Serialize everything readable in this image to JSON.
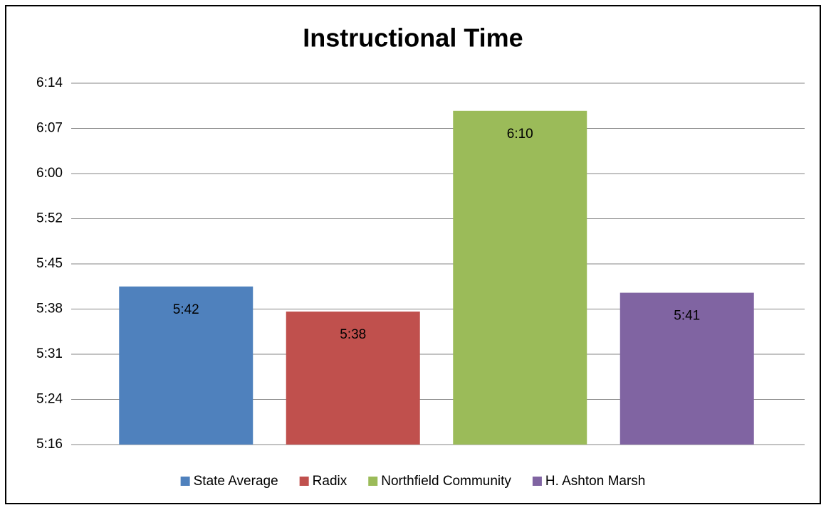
{
  "chart_data": {
    "type": "bar",
    "title": "Instructional Time",
    "categories": [
      "State Average",
      "Radix",
      "Northfield Community",
      "H. Ashton Marsh"
    ],
    "values": [
      342,
      338,
      370,
      341
    ],
    "value_labels": [
      "5:42",
      "5:38",
      "6:10",
      "5:41"
    ],
    "colors": [
      "#4f81bd",
      "#c0504d",
      "#9bbb59",
      "#8064a2"
    ],
    "ylim": [
      316.8,
      374.4
    ],
    "yticks": [
      {
        "value": 316.8,
        "label": "5:16"
      },
      {
        "value": 324,
        "label": "5:24"
      },
      {
        "value": 331.2,
        "label": "5:31"
      },
      {
        "value": 338.4,
        "label": "5:38"
      },
      {
        "value": 345.6,
        "label": "5:45"
      },
      {
        "value": 352.8,
        "label": "5:52"
      },
      {
        "value": 360,
        "label": "6:00"
      },
      {
        "value": 367.2,
        "label": "6:07"
      },
      {
        "value": 374.4,
        "label": "6:14"
      }
    ],
    "grid": true,
    "legend": "bottom"
  }
}
